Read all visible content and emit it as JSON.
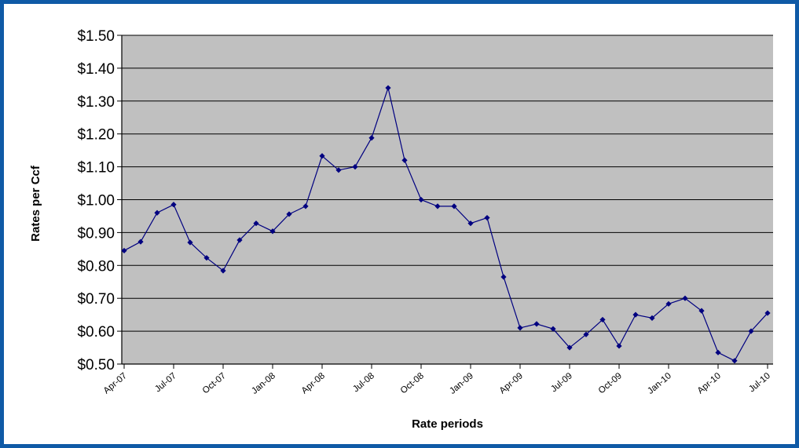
{
  "colors": {
    "border": "#0f5aa6",
    "plot_background": "#c0c0c0",
    "gridline": "#000000",
    "series": "#000080"
  },
  "chart_data": {
    "type": "line",
    "title": "",
    "xlabel": "Rate periods",
    "ylabel": "Rates per Ccf",
    "ylim": [
      0.5,
      1.5
    ],
    "yticks": [
      "$0.50",
      "$0.60",
      "$0.70",
      "$0.80",
      "$0.90",
      "$1.00",
      "$1.10",
      "$1.20",
      "$1.30",
      "$1.40",
      "$1.50"
    ],
    "xticks": [
      "Apr-07",
      "Jul-07",
      "Oct-07",
      "Jan-08",
      "Apr-08",
      "Jul-08",
      "Oct-08",
      "Jan-09",
      "Apr-09",
      "Jul-09",
      "Oct-09",
      "Jan-10",
      "Apr-10",
      "Jul-10"
    ],
    "grid": "horizontal",
    "legend": "none",
    "marker": "diamond",
    "series": [
      {
        "x": [
          "Apr-07",
          "May-07",
          "Jun-07",
          "Jul-07",
          "Aug-07",
          "Sep-07",
          "Oct-07",
          "Nov-07",
          "Dec-07",
          "Jan-08",
          "Feb-08",
          "Mar-08",
          "Apr-08",
          "May-08",
          "Jun-08",
          "Jul-08",
          "Aug-08",
          "Sep-08",
          "Oct-08",
          "Nov-08",
          "Dec-08",
          "Jan-09",
          "Feb-09",
          "Mar-09",
          "Apr-09",
          "May-09",
          "Jun-09",
          "Jul-09",
          "Aug-09",
          "Sep-09",
          "Oct-09",
          "Nov-09",
          "Dec-09",
          "Jan-10",
          "Feb-10",
          "Mar-10",
          "Apr-10",
          "May-10",
          "Jun-10",
          "Jul-10"
        ],
        "values": [
          0.845,
          0.872,
          0.96,
          0.985,
          0.87,
          0.823,
          0.784,
          0.877,
          0.928,
          0.904,
          0.956,
          0.98,
          1.133,
          1.09,
          1.1,
          1.188,
          1.34,
          1.12,
          1.0,
          0.98,
          0.98,
          0.928,
          0.945,
          0.765,
          0.61,
          0.622,
          0.607,
          0.55,
          0.59,
          0.635,
          0.555,
          0.65,
          0.64,
          0.683,
          0.7,
          0.662,
          0.535,
          0.51,
          0.6,
          0.655
        ]
      }
    ]
  }
}
